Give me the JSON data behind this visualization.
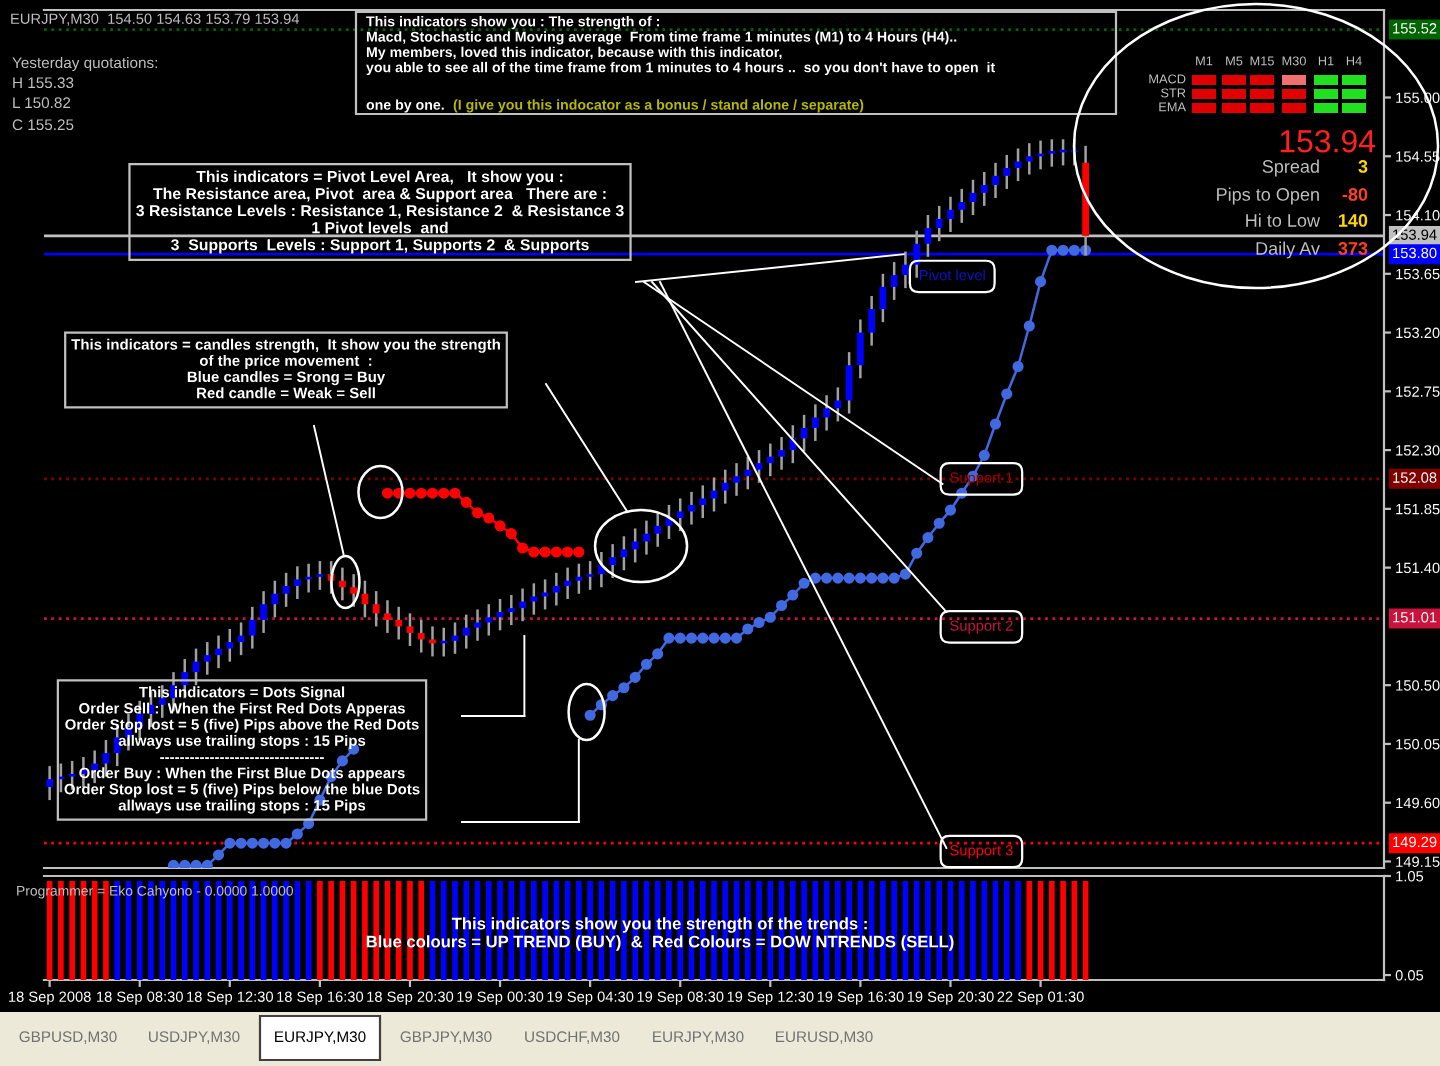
{
  "chart_data": [
    {
      "type": "candlestick",
      "title": "EURJPY,M30  154.50 154.63 153.79 153.94",
      "categories": [
        null,
        null,
        null,
        null,
        null,
        null,
        null,
        null,
        null,
        null,
        null,
        null,
        null,
        null,
        null,
        null,
        null,
        null,
        null,
        null,
        null,
        null,
        null,
        null,
        null,
        null,
        null,
        null,
        null,
        null,
        null,
        null,
        null,
        null,
        null,
        null,
        null,
        null,
        null,
        null,
        null,
        null,
        null,
        null,
        null,
        null,
        null,
        null,
        null,
        null,
        null,
        null,
        null,
        null,
        null,
        null,
        null,
        null,
        null,
        null,
        null,
        null,
        null,
        null,
        null,
        null,
        null,
        null,
        null,
        null,
        null,
        null,
        null,
        null,
        null,
        null,
        null,
        null,
        null,
        null,
        null,
        null,
        null,
        null,
        null,
        null,
        null,
        null,
        null,
        null,
        null,
        null,
        null,
        null,
        null,
        null,
        null,
        null,
        null,
        null,
        null,
        null,
        null,
        null,
        null,
        null,
        null,
        null,
        null,
        null,
        null,
        null,
        null,
        null,
        null,
        null,
        null,
        null,
        null
      ],
      "ohlc": [
        [
          149.72,
          149.88,
          149.62,
          149.78
        ],
        [
          149.78,
          149.9,
          149.68,
          149.8
        ],
        [
          149.8,
          149.92,
          149.7,
          149.82
        ],
        [
          149.82,
          149.95,
          149.72,
          149.85
        ],
        [
          149.85,
          150.0,
          149.75,
          149.9
        ],
        [
          149.9,
          150.08,
          149.8,
          149.98
        ],
        [
          149.98,
          150.2,
          149.88,
          150.1
        ],
        [
          150.1,
          150.28,
          150.0,
          150.18
        ],
        [
          150.18,
          150.38,
          150.08,
          150.28
        ],
        [
          150.28,
          150.45,
          150.18,
          150.35
        ],
        [
          150.35,
          150.5,
          150.25,
          150.4
        ],
        [
          150.4,
          150.6,
          150.3,
          150.5
        ],
        [
          150.5,
          150.7,
          150.4,
          150.6
        ],
        [
          150.6,
          150.78,
          150.5,
          150.68
        ],
        [
          150.68,
          150.83,
          150.58,
          150.73
        ],
        [
          150.73,
          150.88,
          150.63,
          150.78
        ],
        [
          150.78,
          150.93,
          150.68,
          150.83
        ],
        [
          150.83,
          150.98,
          150.73,
          150.88
        ],
        [
          150.88,
          151.1,
          150.78,
          151.0
        ],
        [
          151.0,
          151.22,
          150.9,
          151.12
        ],
        [
          151.12,
          151.3,
          151.02,
          151.2
        ],
        [
          151.2,
          151.36,
          151.1,
          151.26
        ],
        [
          151.26,
          151.41,
          151.16,
          151.31
        ],
        [
          151.31,
          151.43,
          151.21,
          151.33
        ],
        [
          151.33,
          151.45,
          151.23,
          151.35
        ],
        [
          151.35,
          151.45,
          151.2,
          151.3
        ],
        [
          151.3,
          151.4,
          151.15,
          151.25
        ],
        [
          151.25,
          151.35,
          151.1,
          151.2
        ],
        [
          151.2,
          151.3,
          151.02,
          151.12
        ],
        [
          151.12,
          151.22,
          150.95,
          151.05
        ],
        [
          151.05,
          151.15,
          150.9,
          151.0
        ],
        [
          151.0,
          151.1,
          150.85,
          150.95
        ],
        [
          150.95,
          151.05,
          150.8,
          150.9
        ],
        [
          150.9,
          151.0,
          150.75,
          150.85
        ],
        [
          150.85,
          150.95,
          150.72,
          150.82
        ],
        [
          150.82,
          150.94,
          150.72,
          150.84
        ],
        [
          150.84,
          150.98,
          150.74,
          150.88
        ],
        [
          150.88,
          151.04,
          150.78,
          150.94
        ],
        [
          150.94,
          151.08,
          150.84,
          150.98
        ],
        [
          150.98,
          151.12,
          150.88,
          151.02
        ],
        [
          151.02,
          151.16,
          150.92,
          151.06
        ],
        [
          151.06,
          151.19,
          150.96,
          151.09
        ],
        [
          151.09,
          151.24,
          150.99,
          151.14
        ],
        [
          151.14,
          151.28,
          151.04,
          151.18
        ],
        [
          151.18,
          151.31,
          151.08,
          151.21
        ],
        [
          151.21,
          151.36,
          151.11,
          151.26
        ],
        [
          151.26,
          151.4,
          151.16,
          151.3
        ],
        [
          151.3,
          151.43,
          151.2,
          151.33
        ],
        [
          151.33,
          151.45,
          151.23,
          151.35
        ],
        [
          151.35,
          151.52,
          151.25,
          151.42
        ],
        [
          151.42,
          151.58,
          151.32,
          151.48
        ],
        [
          151.48,
          151.64,
          151.38,
          151.54
        ],
        [
          151.54,
          151.7,
          151.44,
          151.6
        ],
        [
          151.6,
          151.76,
          151.5,
          151.66
        ],
        [
          151.66,
          151.82,
          151.56,
          151.72
        ],
        [
          151.72,
          151.88,
          151.62,
          151.78
        ],
        [
          151.78,
          151.93,
          151.68,
          151.83
        ],
        [
          151.83,
          151.98,
          151.73,
          151.88
        ],
        [
          151.88,
          152.03,
          151.78,
          151.93
        ],
        [
          151.93,
          152.09,
          151.83,
          151.99
        ],
        [
          151.99,
          152.15,
          151.89,
          152.05
        ],
        [
          152.05,
          152.2,
          151.95,
          152.1
        ],
        [
          152.1,
          152.25,
          152.0,
          152.15
        ],
        [
          152.15,
          152.3,
          152.05,
          152.2
        ],
        [
          152.2,
          152.35,
          152.1,
          152.25
        ],
        [
          152.25,
          152.4,
          152.15,
          152.3
        ],
        [
          152.3,
          152.49,
          152.2,
          152.39
        ],
        [
          152.39,
          152.57,
          152.29,
          152.47
        ],
        [
          152.47,
          152.65,
          152.37,
          152.55
        ],
        [
          152.55,
          152.72,
          152.45,
          152.62
        ],
        [
          152.62,
          152.78,
          152.52,
          152.68
        ],
        [
          152.68,
          153.05,
          152.58,
          152.95
        ],
        [
          152.95,
          153.3,
          152.85,
          153.2
        ],
        [
          153.2,
          153.48,
          153.1,
          153.38
        ],
        [
          153.38,
          153.65,
          153.28,
          153.55
        ],
        [
          153.55,
          153.74,
          153.45,
          153.64
        ],
        [
          153.64,
          153.82,
          153.54,
          153.72
        ],
        [
          153.72,
          153.98,
          153.62,
          153.88
        ],
        [
          153.88,
          154.1,
          153.78,
          154.0
        ],
        [
          154.0,
          154.17,
          153.9,
          154.07
        ],
        [
          154.07,
          154.24,
          153.97,
          154.14
        ],
        [
          154.14,
          154.3,
          154.04,
          154.2
        ],
        [
          154.2,
          154.37,
          154.1,
          154.27
        ],
        [
          154.27,
          154.43,
          154.17,
          154.33
        ],
        [
          154.33,
          154.5,
          154.23,
          154.4
        ],
        [
          154.4,
          154.56,
          154.3,
          154.46
        ],
        [
          154.46,
          154.61,
          154.36,
          154.51
        ],
        [
          154.51,
          154.65,
          154.41,
          154.55
        ],
        [
          154.55,
          154.67,
          154.45,
          154.57
        ],
        [
          154.57,
          154.68,
          154.47,
          154.58
        ],
        [
          154.58,
          154.68,
          154.48,
          154.58
        ],
        [
          154.58,
          154.68,
          154.48,
          154.58
        ],
        [
          154.5,
          154.63,
          153.79,
          153.94
        ],
        null,
        null,
        null,
        null,
        null,
        null,
        null,
        null,
        null,
        null,
        null,
        null,
        null,
        null,
        null,
        null,
        null,
        null,
        null,
        null,
        null,
        null,
        null,
        null,
        null,
        null
      ],
      "colors": [
        "#0000ff",
        "#0000ff",
        "#0000ff",
        "#0000ff",
        "#0000ff",
        "#0000ff",
        "#0000ff",
        "#0000ff",
        "#0000ff",
        "#0000ff",
        "#0000ff",
        "#0000ff",
        "#0000ff",
        "#0000ff",
        "#0000ff",
        "#0000ff",
        "#0000ff",
        "#0000ff",
        "#0000ff",
        "#0000ff",
        "#0000ff",
        "#0000ff",
        "#0000ff",
        "#0000ff",
        "#0000ff",
        "#ff0000",
        "#ff0000",
        "#ff0000",
        "#ff0000",
        "#ff0000",
        "#ff0000",
        "#ff0000",
        "#ff0000",
        "#ff0000",
        "#ff0000",
        "#0000ff",
        "#0000ff",
        "#0000ff",
        "#0000ff",
        "#0000ff",
        "#0000ff",
        "#0000ff",
        "#0000ff",
        "#0000ff",
        "#0000ff",
        "#0000ff",
        "#0000ff",
        "#0000ff",
        "#0000ff",
        "#0000ff",
        "#0000ff",
        "#0000ff",
        "#0000ff",
        "#0000ff",
        "#0000ff",
        "#0000ff",
        "#0000ff",
        "#0000ff",
        "#0000ff",
        "#0000ff",
        "#0000ff",
        "#0000ff",
        "#0000ff",
        "#0000ff",
        "#0000ff",
        "#0000ff",
        "#0000ff",
        "#0000ff",
        "#0000ff",
        "#0000ff",
        "#0000ff",
        "#0000ff",
        "#0000ff",
        "#0000ff",
        "#0000ff",
        "#0000ff",
        "#0000ff",
        "#0000ff",
        "#0000ff",
        "#0000ff",
        "#0000ff",
        "#0000ff",
        "#0000ff",
        "#0000ff",
        "#0000ff",
        "#0000ff",
        "#0000ff",
        "#0000ff",
        "#0000ff",
        "#0000ff",
        "#0000ff",
        "#0000ff",
        "#ff0000",
        null,
        null,
        null,
        null,
        null,
        null,
        null,
        null,
        null,
        null,
        null,
        null,
        null,
        null,
        null,
        null,
        null,
        null,
        null,
        null,
        null,
        null,
        null,
        null,
        null,
        null
      ],
      "series": [
        {
          "type": "line",
          "color": "#4169e1",
          "values": [
            null,
            null,
            null,
            null,
            null,
            null,
            null,
            null,
            null,
            null,
            null,
            149.12,
            149.12,
            149.12,
            149.12,
            149.2,
            149.29,
            149.29,
            149.29,
            149.29,
            149.29,
            149.29,
            149.36,
            149.44,
            149.62,
            149.8,
            149.92,
            150.01,
            null,
            null,
            null,
            null,
            null,
            null,
            null,
            null,
            null,
            null,
            null,
            null,
            null,
            null,
            null,
            null,
            null,
            null,
            null,
            null,
            150.27,
            150.35,
            150.42,
            150.48,
            150.56,
            150.66,
            150.74,
            150.86,
            150.86,
            150.86,
            150.86,
            150.86,
            150.86,
            150.86,
            150.93,
            150.98,
            151.02,
            151.11,
            151.19,
            151.28,
            151.32,
            151.32,
            151.32,
            151.32,
            151.32,
            151.32,
            151.32,
            151.32,
            151.35,
            151.51,
            151.63,
            151.74,
            151.84,
            151.97,
            152.1,
            152.26,
            152.5,
            152.73,
            152.94,
            153.25,
            153.59,
            153.83,
            153.83,
            153.83,
            153.83,
            null,
            null,
            null,
            null,
            null,
            null,
            null,
            null,
            null,
            null,
            null,
            null,
            null,
            null,
            null,
            null,
            null,
            null,
            null,
            null,
            null,
            null,
            null,
            null,
            null,
            null
          ]
        },
        {
          "type": "line",
          "color": "#ff0000",
          "values": [
            null,
            null,
            null,
            null,
            null,
            null,
            null,
            null,
            null,
            null,
            null,
            null,
            null,
            null,
            null,
            null,
            null,
            null,
            null,
            null,
            null,
            null,
            null,
            null,
            null,
            null,
            null,
            null,
            null,
            null,
            151.97,
            151.97,
            151.97,
            151.97,
            151.97,
            151.97,
            151.97,
            151.9,
            151.82,
            151.78,
            151.72,
            151.66,
            151.55,
            151.52,
            151.52,
            151.52,
            151.52,
            151.52,
            null,
            null,
            null,
            null,
            null,
            null,
            null,
            null,
            null,
            null,
            null,
            null,
            null,
            null,
            null,
            null,
            null,
            null,
            null,
            null,
            null,
            null,
            null,
            null,
            null,
            null,
            null,
            null,
            null,
            null,
            null,
            null,
            null,
            null,
            null,
            null,
            null,
            null,
            null,
            null,
            null,
            null,
            null,
            null,
            null,
            null,
            null,
            null,
            null,
            null,
            null,
            null,
            null,
            null,
            null,
            null,
            null,
            null,
            null,
            null,
            null,
            null,
            null,
            null,
            null,
            null,
            null,
            null,
            null,
            null,
            null
          ]
        }
      ],
      "marker": "circle",
      "ylim": [
        149.1,
        155.67
      ],
      "yticks": [
        149.15,
        {
          "value": 149.6,
          "label": "149.60"
        },
        150.05,
        {
          "value": 150.5,
          "label": "150.50"
        },
        {
          "value": 151.4,
          "label": "151.40"
        },
        151.85,
        {
          "value": 152.3,
          "label": "152.30"
        },
        152.75,
        {
          "value": 153.2,
          "label": "153.20"
        },
        153.65,
        {
          "value": 154.1,
          "label": "154.10"
        },
        154.55,
        {
          "value": 155.0,
          "label": "155.00"
        }
      ],
      "ref_lines": [
        {
          "axis": "y",
          "value": 155.52,
          "label": "155.52",
          "color": "#006400",
          "line_style": "dotted"
        },
        {
          "axis": "y",
          "value": 153.94,
          "label": "153.94",
          "color": "#c0c0c0",
          "line_style": "solid"
        },
        {
          "axis": "y",
          "value": 153.8,
          "label": "153.80",
          "color": "#0000ff",
          "line_style": "solid"
        },
        {
          "axis": "y",
          "value": 152.08,
          "label": "152.08",
          "color": "#800000",
          "line_style": "dotted"
        },
        {
          "axis": "y",
          "value": 151.01,
          "label": "151.01",
          "color": "#c8143c",
          "line_style": "dotted"
        },
        {
          "axis": "y",
          "value": 149.29,
          "label": "149.29",
          "color": "#ff0000",
          "line_style": "dotted"
        }
      ],
      "annotations": [
        "Yesterday quotations:",
        "H 155.33",
        "L 150.82",
        "C 155.25",
        "This indicators show you : The strength of :\nMacd, Stochastic and Moving average  From time frame 1 minutes (M1) to 4 Hours (H4)..\nMy members, loved this indicator, because with this indicator,\nyou able to see all of the time frame from 1 minutes to 4 hours ..  so you don't have to open  it",
        "one by one.",
        "(I give you this indocator as a bonus / stand alone / separate)",
        {
          "text": "This indicators = Pivot Level Area,   It show you :\nThe Resistance area, Pivot  area & Support area   There are :\n3 Resistance Levels : Resistance 1, Resistance 2  & Resistance 3\n1 Pivot levels  and\n3  Supports  Levels : Support 1, Supports 2  & Supports",
          "y": 153.8
        },
        "This indicators = candles strength,  It show you the strength\nof the price movement  :\nBlue candles = Srong = Buy\nRed candle = Weak = Sell",
        "This indicators = Dots Signal\nOrder Sell :  When the First Red Dots Apperas\nOrder Stop lost = 5 (five) Pips above the Red Dots\nallways use trailing stops : 15 Pips\n---------------------------------\nOrder Buy : When the First Blue Dots appears\nOrder Stop lost = 5 (five) Pips below the blue Dots\nallways use trailing stops : 15 Pips",
        {
          "text": "Pivot level",
          "y": 153.8
        },
        {
          "text": "Support 1",
          "y": 152.08
        },
        {
          "text": "Support 2",
          "y": 151.01
        },
        {
          "text": "Support 3",
          "y": 149.29
        },
        "M1",
        "M5",
        "M15",
        "M30",
        "H1",
        "H4",
        "MACD",
        "STR",
        "EMA",
        "153.94",
        "Spread",
        "3",
        "Pips to Open",
        "-80",
        "Hi to Low",
        "140",
        "Daily Av",
        "373"
      ]
    },
    {
      "type": "bar",
      "categories": [
        "18 Sep 2008",
        null,
        null,
        null,
        null,
        null,
        null,
        null,
        "18 Sep 08:30",
        null,
        null,
        null,
        null,
        null,
        null,
        null,
        "18 Sep 12:30",
        null,
        null,
        null,
        null,
        null,
        null,
        null,
        "18 Sep 16:30",
        null,
        null,
        null,
        null,
        null,
        null,
        null,
        "18 Sep 20:30",
        null,
        null,
        null,
        null,
        null,
        null,
        null,
        "19 Sep 00:30",
        null,
        null,
        null,
        null,
        null,
        null,
        null,
        "19 Sep 04:30",
        null,
        null,
        null,
        null,
        null,
        null,
        null,
        "19 Sep 08:30",
        null,
        null,
        null,
        null,
        null,
        null,
        null,
        "19 Sep 12:30",
        null,
        null,
        null,
        null,
        null,
        null,
        null,
        "19 Sep 16:30",
        null,
        null,
        null,
        null,
        null,
        null,
        null,
        "19 Sep 20:30",
        null,
        null,
        null,
        null,
        null,
        null,
        null,
        "22 Sep 01:30",
        null,
        null,
        null,
        null,
        null,
        null,
        null,
        null,
        null,
        null,
        null,
        null,
        null,
        null,
        null,
        null,
        null,
        null,
        null,
        null,
        null,
        null,
        null,
        null,
        null,
        null,
        null,
        null,
        null,
        null
      ],
      "values": [
        1,
        1,
        1,
        1,
        1,
        1,
        1,
        1,
        1,
        1,
        1,
        1,
        1,
        1,
        1,
        1,
        1,
        1,
        1,
        1,
        1,
        1,
        1,
        1,
        1,
        1,
        1,
        1,
        1,
        1,
        1,
        1,
        1,
        1,
        1,
        1,
        1,
        1,
        1,
        1,
        1,
        1,
        1,
        1,
        1,
        1,
        1,
        1,
        1,
        1,
        1,
        1,
        1,
        1,
        1,
        1,
        1,
        1,
        1,
        1,
        1,
        1,
        1,
        1,
        1,
        1,
        1,
        1,
        1,
        1,
        1,
        1,
        1,
        1,
        1,
        1,
        1,
        1,
        1,
        1,
        1,
        1,
        1,
        1,
        1,
        1,
        1,
        1,
        1,
        1,
        1,
        1,
        1,
        null,
        null,
        null,
        null,
        null,
        null,
        null,
        null,
        null,
        null,
        null,
        null,
        null,
        null,
        null,
        null,
        null,
        null,
        null,
        null,
        null,
        null,
        null,
        null,
        null,
        null
      ],
      "colors": [
        "#ff0000",
        "#ff0000",
        "#ff0000",
        "#ff0000",
        "#ff0000",
        "#ff0000",
        "#0000ff",
        "#0000ff",
        "#0000ff",
        "#0000ff",
        "#0000ff",
        "#0000ff",
        "#0000ff",
        "#0000ff",
        "#0000ff",
        "#0000ff",
        "#0000ff",
        "#0000ff",
        "#0000ff",
        "#0000ff",
        "#0000ff",
        "#0000ff",
        "#0000ff",
        "#0000ff",
        "#ff0000",
        "#ff0000",
        "#ff0000",
        "#ff0000",
        "#ff0000",
        "#ff0000",
        "#ff0000",
        "#ff0000",
        "#ff0000",
        "#ff0000",
        "#0000ff",
        "#0000ff",
        "#0000ff",
        "#0000ff",
        "#0000ff",
        "#0000ff",
        "#0000ff",
        "#0000ff",
        "#0000ff",
        "#0000ff",
        "#0000ff",
        "#0000ff",
        "#0000ff",
        "#0000ff",
        "#0000ff",
        "#0000ff",
        "#0000ff",
        "#0000ff",
        "#0000ff",
        "#0000ff",
        "#0000ff",
        "#0000ff",
        "#0000ff",
        "#0000ff",
        "#0000ff",
        "#0000ff",
        "#0000ff",
        "#0000ff",
        "#0000ff",
        "#0000ff",
        "#0000ff",
        "#0000ff",
        "#0000ff",
        "#0000ff",
        "#0000ff",
        "#0000ff",
        "#0000ff",
        "#0000ff",
        "#0000ff",
        "#0000ff",
        "#0000ff",
        "#0000ff",
        "#0000ff",
        "#0000ff",
        "#0000ff",
        "#0000ff",
        "#0000ff",
        "#0000ff",
        "#0000ff",
        "#0000ff",
        "#0000ff",
        "#0000ff",
        "#0000ff",
        "#ff0000",
        "#ff0000",
        "#ff0000",
        "#ff0000",
        "#ff0000",
        "#ff0000",
        null,
        null,
        null,
        null,
        null,
        null,
        null,
        null,
        null,
        null,
        null,
        null,
        null,
        null,
        null,
        null,
        null,
        null,
        null,
        null,
        null,
        null,
        null,
        null,
        null,
        null
      ],
      "ylim": [
        0,
        1.05
      ],
      "yticks": [
        0.05,
        1.05
      ],
      "annotations": [
        "Programmer = Eko Cahyono - 0.0000 1.0000",
        "This indicators show you the strength of the trends :\nBlue colours = UP TREND (BUY)  &  Red Colours = DOW NTRENDS (SELL)",
        "GBPUSD,M30",
        "USDJPY,M30",
        "EURJPY,M30",
        "GBPJPY,M30",
        "USDCHF,M30",
        "EURJPY,M30",
        "EURUSD,M30"
      ]
    }
  ]
}
